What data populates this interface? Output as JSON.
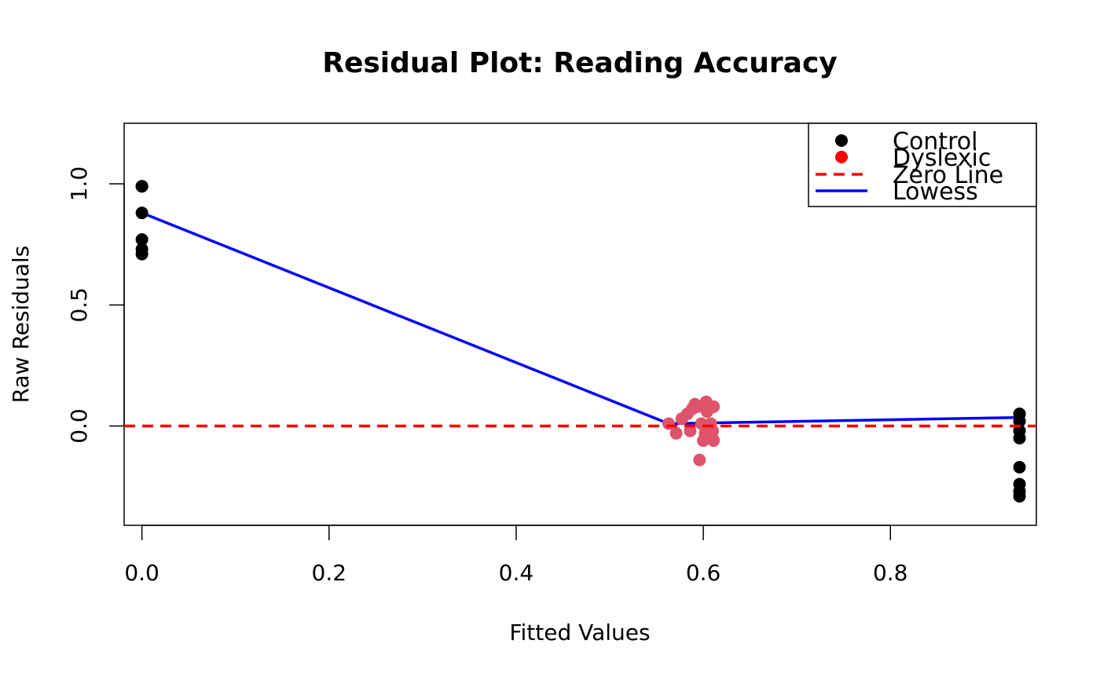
{
  "chart_data": {
    "type": "scatter",
    "title": "Residual Plot: Reading Accuracy",
    "xlabel": "Fitted Values",
    "ylabel": "Raw Residuals",
    "xlim": [
      -0.019,
      0.956
    ],
    "ylim": [
      -0.41,
      1.25
    ],
    "x_ticks": [
      0.0,
      0.2,
      0.4,
      0.6,
      0.8
    ],
    "x_tick_labels": [
      "0.0",
      "0.2",
      "0.4",
      "0.6",
      "0.8"
    ],
    "y_ticks": [
      0.0,
      0.5,
      1.0
    ],
    "y_tick_labels": [
      "0.0",
      "0.5",
      "1.0"
    ],
    "grid": false,
    "legend_position": "top-right",
    "legend": [
      {
        "label": "Control",
        "kind": "point",
        "color": "#000000"
      },
      {
        "label": "Dyslexic",
        "kind": "point",
        "color": "#ff0000"
      },
      {
        "label": "Zero Line",
        "kind": "dashed-line",
        "color": "#ff0000"
      },
      {
        "label": "Lowess",
        "kind": "line",
        "color": "#0000ff"
      }
    ],
    "series": [
      {
        "name": "Control",
        "color": "#000000",
        "points": [
          [
            0.0,
            0.99
          ],
          [
            0.0,
            0.99
          ],
          [
            0.0,
            0.88
          ],
          [
            0.0,
            0.77
          ],
          [
            0.0,
            0.73
          ],
          [
            0.0,
            0.71
          ],
          [
            0.938,
            0.05
          ],
          [
            0.938,
            0.05
          ],
          [
            0.938,
            0.02
          ],
          [
            0.938,
            -0.02
          ],
          [
            0.938,
            -0.05
          ],
          [
            0.938,
            -0.17
          ],
          [
            0.938,
            -0.24
          ],
          [
            0.938,
            -0.27
          ],
          [
            0.938,
            -0.29
          ]
        ]
      },
      {
        "name": "Dyslexic",
        "color": "#df536b",
        "points": [
          [
            0.563,
            0.01
          ],
          [
            0.571,
            -0.03
          ],
          [
            0.577,
            0.03
          ],
          [
            0.583,
            0.05
          ],
          [
            0.586,
            -0.02
          ],
          [
            0.588,
            0.07
          ],
          [
            0.591,
            0.09
          ],
          [
            0.594,
            0.08
          ],
          [
            0.596,
            -0.14
          ],
          [
            0.598,
            0.01
          ],
          [
            0.6,
            -0.06
          ],
          [
            0.602,
            -0.03
          ],
          [
            0.603,
            0.1
          ],
          [
            0.604,
            0.06
          ],
          [
            0.606,
            0.07
          ],
          [
            0.607,
            0.0
          ],
          [
            0.608,
            0.01
          ],
          [
            0.609,
            -0.04
          ],
          [
            0.61,
            -0.02
          ],
          [
            0.611,
            0.08
          ],
          [
            0.611,
            -0.06
          ]
        ]
      }
    ],
    "reference_line": {
      "y": 0.0,
      "color": "#ff0000",
      "style": "dashed"
    },
    "lowess": {
      "color": "#0000ff",
      "points": [
        [
          0.0,
          0.88
        ],
        [
          0.563,
          0.01
        ],
        [
          0.6,
          0.012
        ],
        [
          0.938,
          0.035
        ]
      ]
    }
  }
}
